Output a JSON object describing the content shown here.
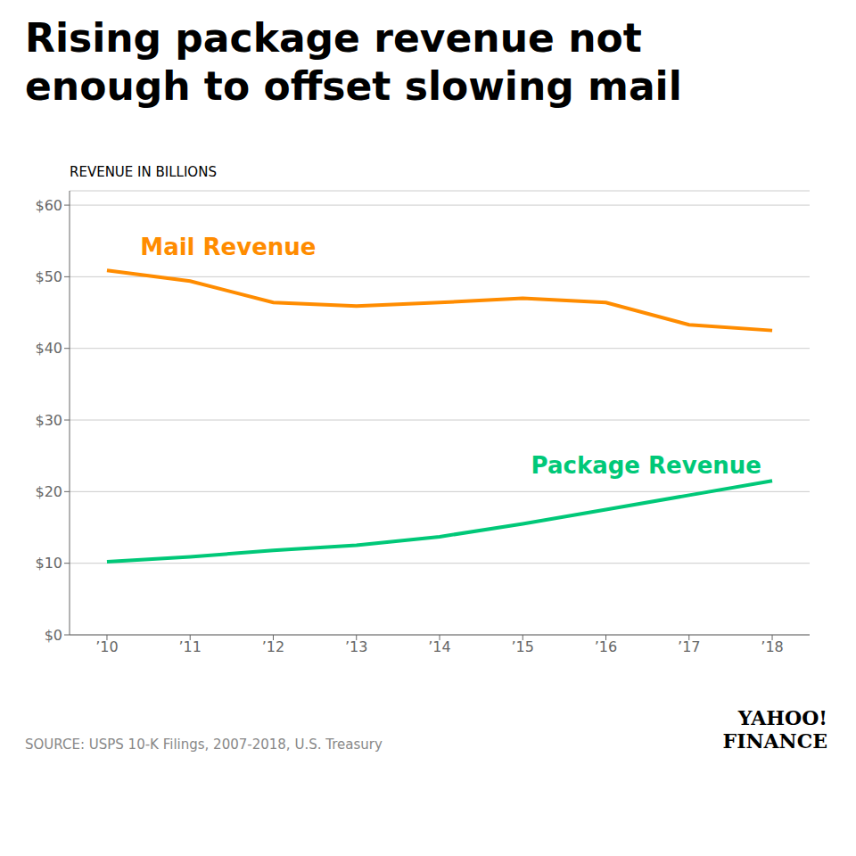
{
  "chart_data": {
    "type": "line",
    "title": "Rising package revenue not\nenough to offset slowing mail",
    "subtitle": "REVENUE IN BILLIONS",
    "source": "SOURCE: USPS 10-K Filings, 2007-2018, U.S. Treasury",
    "credit": "YAHOO!\nFINANCE",
    "x": [
      2010,
      2011,
      2012,
      2013,
      2014,
      2015,
      2016,
      2017,
      2018
    ],
    "series": [
      {
        "name": "Mail Revenue",
        "color": "#FF8C00",
        "values": [
          50.9,
          49.4,
          46.4,
          45.9,
          46.4,
          47.0,
          46.4,
          43.3,
          42.5
        ]
      },
      {
        "name": "Package Revenue",
        "color": "#00C878",
        "values": [
          10.2,
          10.9,
          11.8,
          12.5,
          13.7,
          15.5,
          17.5,
          19.5,
          21.5
        ]
      }
    ],
    "xlim": [
      2009.55,
      2018.45
    ],
    "xticks": [
      {
        "value": 2010,
        "label": "’10"
      },
      {
        "value": 2011,
        "label": "’11"
      },
      {
        "value": 2012,
        "label": "’12"
      },
      {
        "value": 2013,
        "label": "’13"
      },
      {
        "value": 2014,
        "label": "’14"
      },
      {
        "value": 2015,
        "label": "’15"
      },
      {
        "value": 2016,
        "label": "’16"
      },
      {
        "value": 2017,
        "label": "’17"
      },
      {
        "value": 2018,
        "label": "’18"
      }
    ],
    "ylim": [
      0,
      62
    ],
    "yticks": [
      {
        "value": 0,
        "label": "$0"
      },
      {
        "value": 10,
        "label": "$10"
      },
      {
        "value": 20,
        "label": "$20"
      },
      {
        "value": 30,
        "label": "$30"
      },
      {
        "value": 40,
        "label": "$40"
      },
      {
        "value": 50,
        "label": "$50"
      },
      {
        "value": 60,
        "label": "$60"
      }
    ],
    "grid": true,
    "annotations": [
      {
        "text": "Mail Revenue",
        "x": 2010.4,
        "y": 53.0,
        "color": "#FF8C00"
      },
      {
        "text": "Package Revenue",
        "x": 2015.1,
        "y": 22.5,
        "color": "#00C878"
      }
    ]
  }
}
